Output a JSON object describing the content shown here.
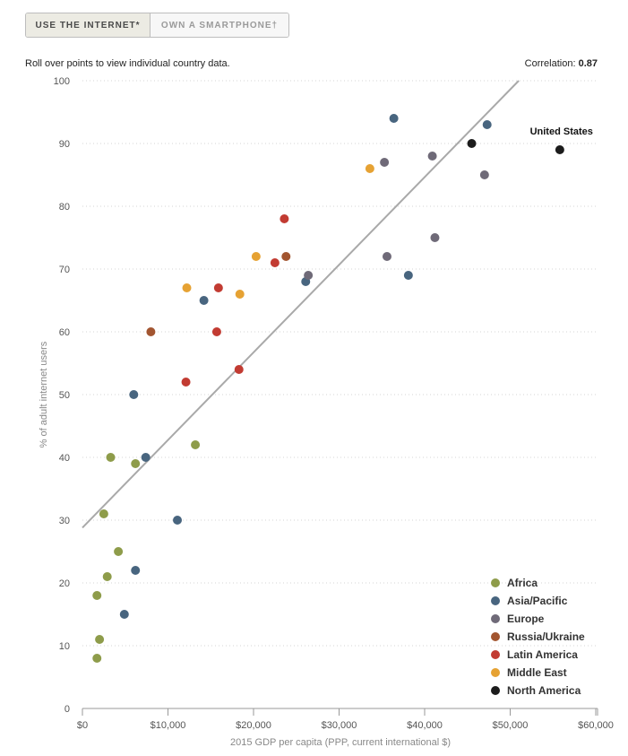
{
  "tabs": [
    {
      "label": "USE THE INTERNET*",
      "active": true
    },
    {
      "label": "OWN A SMARTPHONE†",
      "active": false
    }
  ],
  "hint": "Roll over points to view individual country data.",
  "correlation": {
    "label": "Correlation:",
    "value": "0.87"
  },
  "chart_data": {
    "type": "scatter",
    "xlabel": "2015 GDP per capita (PPP, current international $)",
    "ylabel": "% of adult internet users",
    "xlim": [
      0,
      60000
    ],
    "ylim": [
      0,
      100
    ],
    "x_tick_values": [
      0,
      10000,
      20000,
      30000,
      40000,
      50000,
      60000
    ],
    "x_tick_labels": [
      "$0",
      "$10,000",
      "$20,000",
      "$30,000",
      "$40,000",
      "$50,000",
      "$60,000"
    ],
    "y_tick_values": [
      0,
      10,
      20,
      30,
      40,
      50,
      60,
      70,
      80,
      90,
      100
    ],
    "y_tick_labels": [
      "0",
      "10",
      "20",
      "30",
      "40",
      "50",
      "60",
      "70",
      "80",
      "90",
      "100"
    ],
    "trendline": {
      "x": [
        0,
        51000
      ],
      "y": [
        28.8,
        100
      ]
    },
    "annotation": {
      "text": "United States",
      "x": 55800,
      "y": 89
    },
    "series": [
      {
        "name": "Africa",
        "color": "#8e9c4a",
        "points": [
          [
            1700,
            8
          ],
          [
            2000,
            11
          ],
          [
            1700,
            18
          ],
          [
            2900,
            21
          ],
          [
            4200,
            25
          ],
          [
            2500,
            31
          ],
          [
            3300,
            40
          ],
          [
            6200,
            39
          ],
          [
            13200,
            42
          ]
        ]
      },
      {
        "name": "Asia/Pacific",
        "color": "#48657f",
        "points": [
          [
            4900,
            15
          ],
          [
            6200,
            22
          ],
          [
            11100,
            30
          ],
          [
            7400,
            40
          ],
          [
            6000,
            50
          ],
          [
            14200,
            65
          ],
          [
            26100,
            68
          ],
          [
            38100,
            69
          ],
          [
            36400,
            94
          ],
          [
            47300,
            93
          ]
        ]
      },
      {
        "name": "Europe",
        "color": "#6f6a78",
        "points": [
          [
            26400,
            69
          ],
          [
            35600,
            72
          ],
          [
            41200,
            75
          ],
          [
            35300,
            87
          ],
          [
            40900,
            88
          ],
          [
            47000,
            85
          ]
        ]
      },
      {
        "name": "Russia/Ukraine",
        "color": "#a25530",
        "points": [
          [
            8000,
            60
          ],
          [
            23800,
            72
          ]
        ]
      },
      {
        "name": "Latin America",
        "color": "#c23b32",
        "points": [
          [
            12100,
            52
          ],
          [
            18300,
            54
          ],
          [
            15700,
            60
          ],
          [
            15900,
            67
          ],
          [
            22500,
            71
          ],
          [
            23600,
            78
          ]
        ]
      },
      {
        "name": "Middle East",
        "color": "#e6a233",
        "points": [
          [
            12200,
            67
          ],
          [
            18400,
            66
          ],
          [
            20300,
            72
          ],
          [
            33600,
            86
          ]
        ]
      },
      {
        "name": "North America",
        "color": "#1c1c1c",
        "points": [
          [
            45500,
            90
          ],
          [
            55800,
            89
          ]
        ]
      }
    ]
  }
}
